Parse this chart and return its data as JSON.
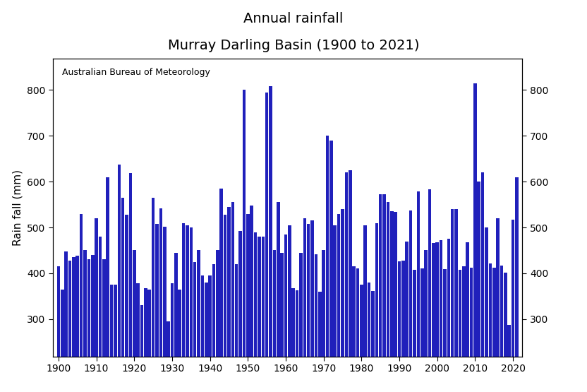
{
  "title_line1": "Annual rainfall",
  "title_line2": "Murray Darling Basin (1900 to 2021)",
  "ylabel": "Rain fall (mm)",
  "annotation": "Australian Bureau of Meteorology",
  "bar_color": "#2020BB",
  "background_color": "#ffffff",
  "ylim": [
    218,
    868
  ],
  "yticks": [
    300,
    400,
    500,
    600,
    700,
    800
  ],
  "years": [
    1900,
    1901,
    1902,
    1903,
    1904,
    1905,
    1906,
    1907,
    1908,
    1909,
    1910,
    1911,
    1912,
    1913,
    1914,
    1915,
    1916,
    1917,
    1918,
    1919,
    1920,
    1921,
    1922,
    1923,
    1924,
    1925,
    1926,
    1927,
    1928,
    1929,
    1930,
    1931,
    1932,
    1933,
    1934,
    1935,
    1936,
    1937,
    1938,
    1939,
    1940,
    1941,
    1942,
    1943,
    1944,
    1945,
    1946,
    1947,
    1948,
    1949,
    1950,
    1951,
    1952,
    1953,
    1954,
    1955,
    1956,
    1957,
    1958,
    1959,
    1960,
    1961,
    1962,
    1963,
    1964,
    1965,
    1966,
    1967,
    1968,
    1969,
    1970,
    1971,
    1972,
    1973,
    1974,
    1975,
    1976,
    1977,
    1978,
    1979,
    1980,
    1981,
    1982,
    1983,
    1984,
    1985,
    1986,
    1987,
    1988,
    1989,
    1990,
    1991,
    1992,
    1993,
    1994,
    1995,
    1996,
    1997,
    1998,
    1999,
    2000,
    2001,
    2002,
    2003,
    2004,
    2005,
    2006,
    2007,
    2008,
    2009,
    2010,
    2011,
    2012,
    2013,
    2014,
    2015,
    2016,
    2017,
    2018,
    2019,
    2020,
    2021
  ],
  "values": [
    415,
    365,
    448,
    428,
    435,
    438,
    530,
    450,
    430,
    440,
    520,
    480,
    430,
    610,
    375,
    375,
    638,
    565,
    528,
    618,
    450,
    378,
    330,
    368,
    365,
    565,
    508,
    542,
    502,
    295,
    378,
    445,
    365,
    510,
    505,
    500,
    425,
    450,
    395,
    380,
    395,
    420,
    450,
    585,
    528,
    545,
    555,
    420,
    493,
    800,
    530,
    548,
    490,
    480,
    480,
    795,
    808,
    450,
    556,
    444,
    485,
    505,
    367,
    363,
    445,
    520,
    508,
    515,
    442,
    360,
    450,
    700,
    690,
    505,
    530,
    540,
    620,
    625,
    415,
    410,
    375,
    505,
    380,
    362,
    510,
    573,
    572,
    555,
    535,
    534,
    426,
    428,
    470,
    537,
    407,
    578,
    410,
    450,
    583,
    466,
    468,
    473,
    409,
    475,
    540,
    540,
    407,
    415,
    468,
    413,
    815,
    600,
    620,
    500,
    421,
    413,
    520,
    417,
    402,
    288,
    517,
    610
  ]
}
